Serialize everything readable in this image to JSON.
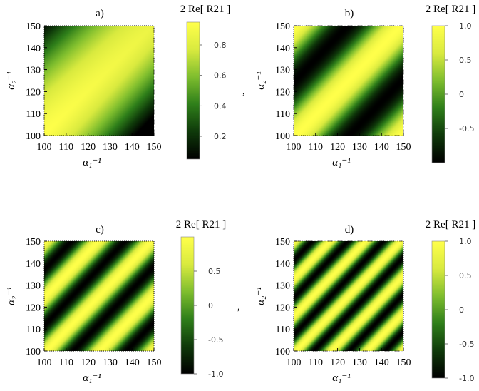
{
  "chart_data": [
    {
      "type": "heatmap",
      "title": "a)",
      "xlabel": "α₁⁻¹",
      "ylabel": "α₂⁻¹",
      "x_ticks": [
        100,
        110,
        120,
        130,
        140,
        150
      ],
      "y_ticks": [
        100,
        110,
        120,
        130,
        140,
        150
      ],
      "xlim": [
        100,
        150
      ],
      "ylim": [
        100,
        150
      ],
      "colorbar": {
        "title": "2 Re[ R21 ]",
        "range": [
          0.05,
          0.95
        ],
        "ticks": [
          0.2,
          0.4,
          0.6,
          0.8
        ],
        "tick_labels": [
          "0.2",
          "0.4",
          "0.6",
          "0.8"
        ]
      },
      "pattern": {
        "fringes": 0.35
      },
      "separator": ","
    },
    {
      "type": "heatmap",
      "title": "b)",
      "xlabel": "α₁⁻¹",
      "ylabel": "α₂⁻¹",
      "x_ticks": [
        100,
        110,
        120,
        130,
        140,
        150
      ],
      "y_ticks": [
        100,
        110,
        120,
        130,
        140,
        150
      ],
      "xlim": [
        100,
        150
      ],
      "ylim": [
        100,
        150
      ],
      "colorbar": {
        "title": "2 Re[ R21 ]",
        "range": [
          -1,
          1
        ],
        "ticks": [
          -0.5,
          0,
          0.5,
          1.0
        ],
        "tick_labels": [
          "-0.5",
          "0",
          "0.5",
          "1.0"
        ]
      },
      "pattern": {
        "fringes": 1.0
      }
    },
    {
      "type": "heatmap",
      "title": "c)",
      "xlabel": "α₁⁻¹",
      "ylabel": "α₂⁻¹",
      "x_ticks": [
        100,
        110,
        120,
        130,
        140,
        150
      ],
      "y_ticks": [
        100,
        110,
        120,
        130,
        140,
        150
      ],
      "xlim": [
        100,
        150
      ],
      "ylim": [
        100,
        150
      ],
      "colorbar": {
        "title": "2 Re[ R21 ]",
        "range": [
          -1,
          1
        ],
        "ticks": [
          -1.0,
          -0.5,
          0,
          0.5
        ],
        "tick_labels": [
          "-1.0",
          "-0.5",
          "0",
          "0.5"
        ]
      },
      "pattern": {
        "fringes": 2.0
      },
      "separator": ","
    },
    {
      "type": "heatmap",
      "title": "d)",
      "xlabel": "α₁⁻¹",
      "ylabel": "α₂⁻¹",
      "x_ticks": [
        100,
        110,
        120,
        130,
        140,
        150
      ],
      "y_ticks": [
        100,
        110,
        120,
        130,
        140,
        150
      ],
      "xlim": [
        100,
        150
      ],
      "ylim": [
        100,
        150
      ],
      "colorbar": {
        "title": "2 Re[ R21 ]",
        "range": [
          -1,
          1
        ],
        "ticks": [
          -1.0,
          -0.5,
          0,
          0.5,
          1.0
        ],
        "tick_labels": [
          "-1.0",
          "-0.5",
          "0",
          "0.5",
          "1.0"
        ]
      },
      "pattern": {
        "fringes": 3.0
      }
    }
  ],
  "colormap": [
    "#000000",
    "#0f3a0a",
    "#2f7f1a",
    "#7fbe2e",
    "#d9ea3f",
    "#ffff4a"
  ]
}
